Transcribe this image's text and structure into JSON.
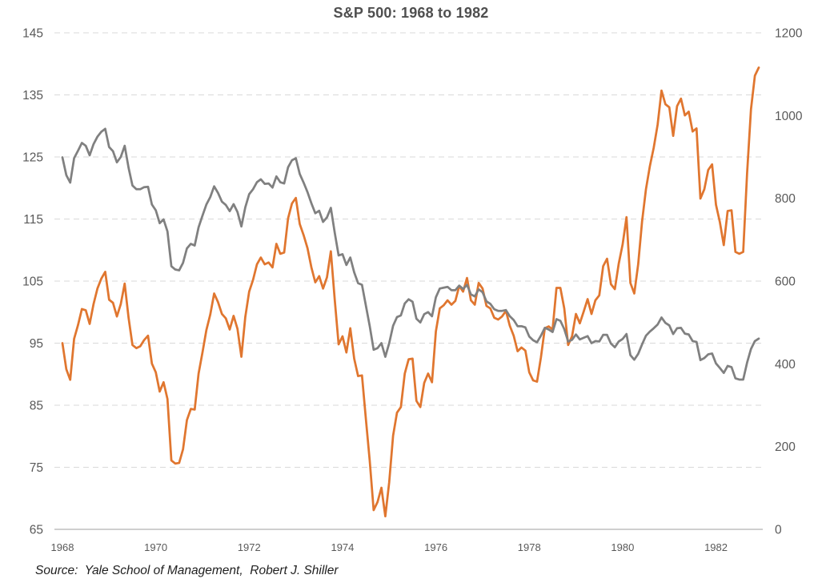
{
  "title": "S&P 500: 1968 to 1982",
  "source_note": "Source:  Yale School of Management,  Robert J. Shiller",
  "colors": {
    "orange_series": "#E0762F",
    "gray_series": "#808080",
    "gridline": "#D9D9D9",
    "axis_line": "#BFBFBF",
    "tick_label": "#595959",
    "title_text": "#4F4F4F",
    "source_text": "#1F1F1F",
    "background": "#FFFFFF"
  },
  "chart_data": {
    "type": "line",
    "title": "S&P 500: 1968 to 1982",
    "x_unit": "month",
    "x_start": "1968-01",
    "x_end": "1982-12",
    "x_tick_labels": [
      "1968",
      "1970",
      "1972",
      "1974",
      "1976",
      "1978",
      "1980",
      "1982"
    ],
    "grid": "horizontal-dashed",
    "legend": "none",
    "left_axis": {
      "min": 65,
      "max": 145,
      "ticks": [
        65,
        75,
        85,
        95,
        105,
        115,
        125,
        135,
        145
      ]
    },
    "right_axis": {
      "min": 0,
      "max": 1200,
      "ticks": [
        0,
        200,
        400,
        600,
        800,
        1000,
        1200
      ]
    },
    "series": [
      {
        "name": "orange-line (left axis)",
        "axis": "left",
        "color": "#E0762F",
        "values": [
          95.0,
          90.8,
          89.1,
          95.7,
          97.9,
          100.5,
          100.3,
          98.1,
          101.3,
          103.8,
          105.4,
          106.5,
          102.0,
          101.5,
          99.3,
          101.3,
          104.6,
          99.1,
          94.7,
          94.2,
          94.5,
          95.5,
          96.2,
          91.7,
          90.3,
          87.2,
          88.7,
          86.0,
          76.1,
          75.6,
          75.7,
          77.9,
          82.6,
          84.4,
          84.3,
          90.1,
          93.5,
          97.1,
          99.6,
          103.0,
          101.6,
          99.7,
          99.0,
          97.2,
          99.4,
          97.3,
          92.8,
          99.2,
          103.3,
          105.2,
          107.7,
          108.8,
          107.7,
          108.0,
          107.2,
          111.0,
          109.4,
          109.6,
          115.1,
          117.5,
          118.4,
          114.2,
          112.4,
          110.3,
          107.2,
          104.8,
          105.8,
          103.8,
          105.6,
          109.8,
          102.0,
          94.8,
          96.1,
          93.5,
          97.4,
          92.5,
          89.7,
          89.8,
          82.8,
          76.0,
          68.1,
          69.4,
          71.7,
          67.1,
          72.6,
          80.1,
          83.8,
          84.7,
          90.1,
          92.4,
          92.5,
          85.7,
          84.7,
          88.6,
          90.1,
          88.7,
          96.9,
          100.6,
          101.1,
          101.9,
          101.2,
          101.8,
          104.2,
          103.3,
          105.5,
          101.9,
          101.2,
          104.7,
          103.8,
          101.0,
          100.6,
          99.1,
          98.8,
          99.3,
          100.2,
          97.8,
          96.2,
          93.7,
          94.3,
          93.8,
          90.3,
          89.0,
          88.8,
          92.7,
          97.4,
          97.7,
          97.2,
          103.9,
          103.9,
          100.6,
          94.7,
          96.1,
          99.7,
          98.2,
          100.1,
          102.1,
          99.7,
          101.9,
          102.7,
          107.4,
          108.6,
          104.5,
          103.7,
          107.8,
          110.9,
          115.3,
          104.7,
          103.0,
          107.7,
          114.6,
          119.8,
          123.5,
          126.5,
          130.2,
          135.7,
          133.5,
          133.0,
          128.4,
          133.2,
          134.4,
          131.7,
          132.3,
          129.1,
          129.6,
          118.3,
          119.8,
          122.9,
          123.8,
          117.3,
          114.5,
          110.8,
          116.3,
          116.4,
          109.7,
          109.4,
          109.7,
          122.4,
          132.7,
          138.1,
          139.4
        ]
      },
      {
        "name": "gray-line (right axis)",
        "axis": "right",
        "color": "#808080",
        "values": [
          899,
          856,
          838,
          897,
          915,
          934,
          927,
          904,
          931,
          949,
          961,
          968,
          924,
          914,
          887,
          900,
          927,
          874,
          831,
          822,
          822,
          827,
          828,
          785,
          771,
          740,
          749,
          720,
          636,
          628,
          626,
          644,
          679,
          690,
          686,
          730,
          758,
          785,
          803,
          829,
          813,
          792,
          784,
          769,
          786,
          767,
          732,
          778,
          810,
          822,
          839,
          846,
          835,
          836,
          826,
          853,
          839,
          836,
          875,
          892,
          897,
          859,
          838,
          815,
          788,
          764,
          770,
          743,
          754,
          777,
          717,
          662,
          665,
          639,
          657,
          621,
          595,
          591,
          541,
          491,
          434,
          438,
          450,
          417,
          450,
          492,
          513,
          517,
          546,
          556,
          550,
          509,
          500,
          520,
          525,
          515,
          561,
          582,
          584,
          586,
          578,
          578,
          589,
          581,
          591,
          568,
          563,
          580,
          573,
          551,
          545,
          532,
          528,
          528,
          530,
          515,
          506,
          491,
          491,
          488,
          466,
          457,
          452,
          468,
          487,
          483,
          477,
          508,
          504,
          484,
          454,
          458,
          471,
          459,
          463,
          467,
          450,
          455,
          454,
          470,
          470,
          449,
          440,
          454,
          460,
          472,
          421,
          410,
          424,
          447,
          468,
          478,
          486,
          495,
          512,
          499,
          493,
          472,
          486,
          487,
          473,
          471,
          455,
          453,
          409,
          414,
          423,
          425,
          401,
          390,
          378,
          395,
          392,
          365,
          362,
          362,
          403,
          436,
          455,
          461
        ]
      }
    ]
  }
}
